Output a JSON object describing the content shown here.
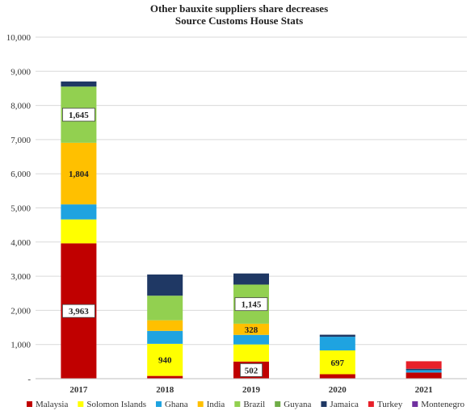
{
  "chart_data": {
    "type": "bar",
    "stacked": true,
    "title": "Other bauxite suppliers share decreases",
    "subtitle": "Source Customs House Stats",
    "xlabel": "",
    "ylabel": "",
    "ylim": [
      0,
      10000
    ],
    "yticks": [
      0,
      1000,
      2000,
      3000,
      4000,
      5000,
      6000,
      7000,
      8000,
      9000,
      10000
    ],
    "ytick_labels": [
      "-",
      "1,000",
      "2,000",
      "3,000",
      "4,000",
      "5,000",
      "6,000",
      "7,000",
      "8,000",
      "9,000",
      "10,000"
    ],
    "grid": true,
    "legend_position": "bottom",
    "categories": [
      "2017",
      "2018",
      "2019",
      "2020",
      "2021"
    ],
    "series": [
      {
        "name": "Malaysia",
        "color": "#c00000",
        "values": [
          3963,
          80,
          502,
          130,
          180
        ]
      },
      {
        "name": "Solomon Islands",
        "color": "#ffff00",
        "values": [
          700,
          940,
          500,
          697,
          0
        ]
      },
      {
        "name": "Ghana",
        "color": "#1fa3e0",
        "values": [
          440,
          380,
          280,
          400,
          70
        ]
      },
      {
        "name": "India",
        "color": "#ffc000",
        "values": [
          1804,
          310,
          328,
          0,
          0
        ]
      },
      {
        "name": "Brazil",
        "color": "#92d050",
        "values": [
          1645,
          720,
          1145,
          0,
          0
        ]
      },
      {
        "name": "Guyana",
        "color": "#70ad47",
        "values": [
          0,
          0,
          0,
          0,
          0
        ]
      },
      {
        "name": "Jamaica",
        "color": "#1f3864",
        "values": [
          150,
          620,
          325,
          60,
          40
        ]
      },
      {
        "name": "Turkey",
        "color": "#e8202a",
        "values": [
          0,
          0,
          0,
          0,
          220
        ]
      },
      {
        "name": "Montenegro",
        "color": "#7030a0",
        "values": [
          0,
          0,
          0,
          0,
          0
        ]
      }
    ],
    "data_labels": [
      {
        "category": "2017",
        "series": "Malaysia",
        "text": "3,963",
        "boxed": true
      },
      {
        "category": "2017",
        "series": "India",
        "text": "1,804",
        "boxed": false
      },
      {
        "category": "2017",
        "series": "Brazil",
        "text": "1,645",
        "boxed": true
      },
      {
        "category": "2018",
        "series": "Solomon Islands",
        "text": "940",
        "boxed": false
      },
      {
        "category": "2019",
        "series": "Malaysia",
        "text": "502",
        "boxed": true
      },
      {
        "category": "2019",
        "series": "India",
        "text": "328",
        "boxed": false
      },
      {
        "category": "2019",
        "series": "Brazil",
        "text": "1,145",
        "boxed": true
      },
      {
        "category": "2020",
        "series": "Solomon Islands",
        "text": "697",
        "boxed": false
      }
    ]
  }
}
